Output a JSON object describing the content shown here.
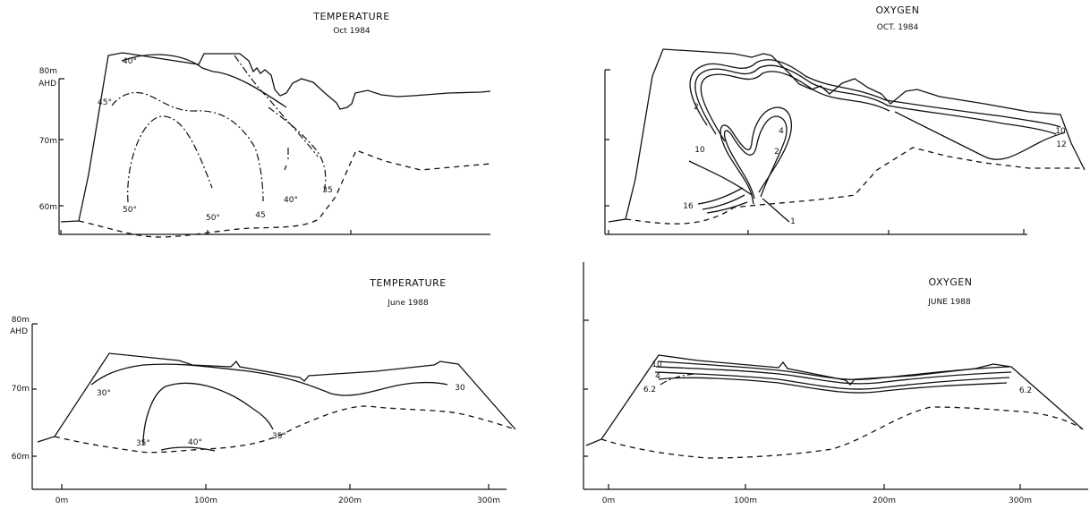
{
  "panels": {
    "temp_oct": {
      "title": "TEMPERATURE",
      "subtitle": "Oct 1984",
      "y_labels": [
        "80m",
        "AHD",
        "70m",
        "60m"
      ],
      "contours": [
        "40°",
        "45°",
        "50°",
        "50°",
        "45",
        "40°",
        "35"
      ]
    },
    "oxy_oct": {
      "title": "OXYGEN",
      "subtitle": "OCT. 1984",
      "contours": [
        "2",
        "10",
        "4",
        "2",
        "1",
        "16",
        "10",
        "12"
      ]
    },
    "temp_jun": {
      "title": "TEMPERATURE",
      "subtitle": "June 1988",
      "y_labels": [
        "80m",
        "AHD",
        "70m",
        "60m"
      ],
      "contours": [
        "30°",
        "30",
        "35°",
        "40°",
        "35°"
      ],
      "x_ticks": [
        "0m",
        "100m",
        "200m",
        "300m"
      ]
    },
    "oxy_jun": {
      "title": "OXYGEN",
      "subtitle": "JUNE 1988",
      "contours": [
        "10",
        "4",
        "6.2",
        "6.2"
      ],
      "x_ticks": [
        "0m",
        "100m",
        "200m",
        "300m"
      ]
    }
  }
}
